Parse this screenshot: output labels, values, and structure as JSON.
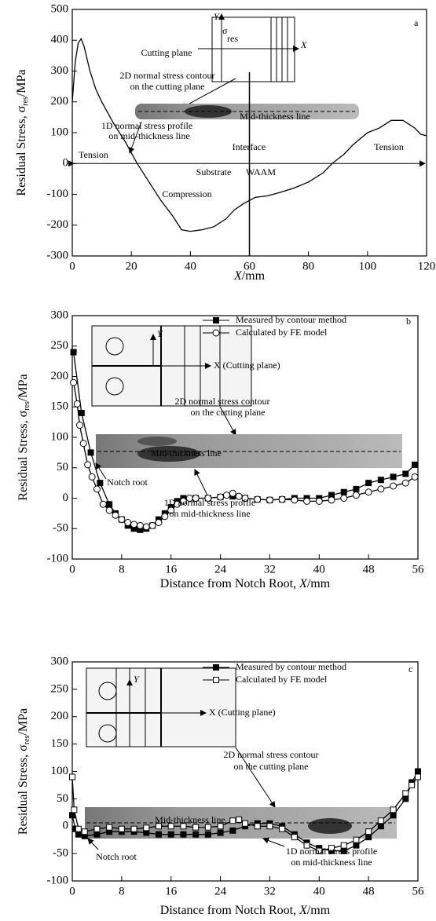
{
  "chart_data": [
    {
      "type": "line",
      "y_label": "Residual Stress, σ",
      "y_label_sub": "res",
      "y_label_unit": "/MPa",
      "x_label_var": "X",
      "x_label_unit": "/mm",
      "xlim": [
        0,
        120
      ],
      "xticks": [
        0,
        20,
        40,
        60,
        80,
        100,
        120
      ],
      "ylim": [
        -300,
        500
      ],
      "yticks": [
        -300,
        -200,
        -100,
        0,
        100,
        200,
        300,
        400,
        500
      ],
      "series": [
        {
          "color": "#000000",
          "marker": "none",
          "x": [
            0,
            1,
            2,
            3,
            4,
            6,
            8,
            10,
            14,
            18,
            22,
            26,
            30,
            34,
            37,
            40,
            44,
            48,
            52,
            55,
            58,
            60,
            62,
            66,
            70,
            75,
            80,
            85,
            88,
            92,
            95,
            100,
            104,
            108,
            112,
            116,
            118,
            120
          ],
          "values": [
            200,
            330,
            390,
            405,
            380,
            300,
            240,
            200,
            130,
            70,
            0,
            -60,
            -120,
            -170,
            -215,
            -220,
            -215,
            -205,
            -180,
            -150,
            -130,
            -120,
            -110,
            -105,
            -95,
            -80,
            -60,
            -30,
            0,
            30,
            60,
            100,
            115,
            140,
            140,
            115,
            95,
            90
          ]
        }
      ],
      "annotations": [
        {
          "text": "a"
        },
        {
          "text": "Y"
        },
        {
          "text": "X"
        },
        {
          "text": "σ"
        },
        {
          "text": "res"
        },
        {
          "text": "Cutting plane"
        },
        {
          "text": "2D normal stress contour"
        },
        {
          "text": "on the cutting plane"
        },
        {
          "text": "Mid-thickness line"
        },
        {
          "text": "1D normal stress profile"
        },
        {
          "text": "on mid-thickness line"
        },
        {
          "text": "Tension"
        },
        {
          "text": "Tension"
        },
        {
          "text": "Interface"
        },
        {
          "text": "Substrate"
        },
        {
          "text": "WAAM"
        },
        {
          "text": "Compression"
        }
      ]
    },
    {
      "type": "line",
      "y_label": "Residual Stress, σ",
      "y_label_sub": "res",
      "y_label_unit": "/MPa",
      "x_label_pre": "Distance from Notch Root, ",
      "x_label_var": "X",
      "x_label_unit": "/mm",
      "xlim": [
        0,
        56
      ],
      "xticks": [
        0,
        8,
        16,
        24,
        32,
        40,
        48,
        56
      ],
      "ylim": [
        -100,
        300
      ],
      "yticks": [
        -100,
        -50,
        0,
        50,
        100,
        150,
        200,
        250,
        300
      ],
      "series": [
        {
          "name": "Measured by contour method",
          "color": "#000000",
          "marker": "filled-square",
          "x": [
            0.2,
            1.5,
            3,
            4.5,
            6,
            7,
            8,
            9,
            10,
            11,
            12,
            13,
            14,
            15,
            16,
            17,
            18,
            20,
            22,
            24,
            26,
            28,
            30,
            32,
            34,
            36,
            38,
            40,
            42,
            44,
            46,
            48,
            50,
            52,
            54,
            55.5
          ],
          "values": [
            240,
            140,
            75,
            25,
            -10,
            -25,
            -35,
            -45,
            -50,
            -52,
            -50,
            -45,
            -35,
            -25,
            -15,
            -5,
            0,
            0,
            0,
            2,
            3,
            0,
            -2,
            -3,
            -2,
            0,
            0,
            0,
            5,
            10,
            15,
            25,
            30,
            35,
            40,
            55
          ]
        },
        {
          "name": "Calculated by FE model",
          "color": "#000000",
          "marker": "open-circle",
          "x": [
            0.2,
            0.8,
            1.2,
            1.8,
            2.5,
            3.2,
            4,
            5,
            6,
            7,
            8,
            9,
            10,
            11,
            12,
            13,
            14,
            15,
            16,
            17,
            18,
            19,
            20,
            22,
            24,
            25,
            26,
            27,
            28,
            30,
            32,
            34,
            36,
            38,
            40,
            42,
            44,
            46,
            48,
            50,
            52,
            54,
            55.5
          ],
          "values": [
            190,
            155,
            120,
            90,
            55,
            35,
            15,
            -10,
            -20,
            -28,
            -35,
            -40,
            -43,
            -45,
            -47,
            -45,
            -40,
            -30,
            -20,
            -10,
            -5,
            0,
            0,
            0,
            2,
            5,
            8,
            3,
            0,
            -2,
            -3,
            -2,
            -3,
            -5,
            -5,
            -3,
            0,
            5,
            10,
            15,
            20,
            25,
            35
          ]
        }
      ],
      "annotations": [
        {
          "text": "b"
        },
        {
          "text": "Y"
        },
        {
          "text": "X (Cutting plane)"
        },
        {
          "text": "2D normal stress contour"
        },
        {
          "text": "on the cutting plane"
        },
        {
          "text": "Mid-thickness line"
        },
        {
          "text": "Notch root"
        },
        {
          "text": "1D normal stress profile"
        },
        {
          "text": "on mid-thickness line"
        }
      ]
    },
    {
      "type": "line",
      "y_label": "Residual Stress, σ",
      "y_label_sub": "res",
      "y_label_unit": "/MPa",
      "x_label_pre": "Distance from Notch Root, ",
      "x_label_var": "X",
      "x_label_unit": "/mm",
      "xlim": [
        0,
        56
      ],
      "xticks": [
        0,
        8,
        16,
        24,
        32,
        40,
        48,
        56
      ],
      "ylim": [
        -100,
        300
      ],
      "yticks": [
        -100,
        -50,
        0,
        50,
        100,
        150,
        200,
        250,
        300
      ],
      "series": [
        {
          "name": "Measured by contour method",
          "color": "#000000",
          "marker": "filled-square",
          "x": [
            0,
            0.5,
            1,
            2,
            4,
            6,
            8,
            10,
            12,
            14,
            16,
            18,
            20,
            22,
            24,
            26,
            28,
            30,
            32,
            34,
            36,
            38,
            40,
            42,
            44,
            46,
            48,
            50,
            52,
            54,
            55,
            56
          ],
          "values": [
            20,
            -5,
            -15,
            -18,
            -15,
            -10,
            -10,
            -10,
            -12,
            -15,
            -15,
            -15,
            -15,
            -15,
            -12,
            -8,
            0,
            5,
            5,
            0,
            -15,
            -30,
            -40,
            -45,
            -45,
            -35,
            -20,
            0,
            20,
            50,
            80,
            100
          ]
        },
        {
          "name": "Calculated by FE model",
          "color": "#000000",
          "marker": "open-square",
          "x": [
            0,
            0.3,
            1,
            2,
            4,
            6,
            8,
            10,
            12,
            14,
            16,
            18,
            20,
            22,
            24,
            26,
            27,
            28,
            30,
            32,
            34,
            36,
            38,
            40,
            42,
            44,
            46,
            48,
            50,
            52,
            54,
            55,
            56
          ],
          "values": [
            90,
            30,
            -5,
            -10,
            -5,
            -2,
            -5,
            -5,
            -3,
            0,
            0,
            0,
            -2,
            -2,
            0,
            10,
            12,
            5,
            0,
            0,
            -5,
            -20,
            -35,
            -45,
            -40,
            -35,
            -25,
            -10,
            10,
            30,
            60,
            75,
            90
          ]
        }
      ],
      "annotations": [
        {
          "text": "c"
        },
        {
          "text": "Y"
        },
        {
          "text": "X (Cutting plane)"
        },
        {
          "text": "2D normal stress contour"
        },
        {
          "text": "on the cutting plane"
        },
        {
          "text": "Mid-thickness line"
        },
        {
          "text": "Notch root"
        },
        {
          "text": "1D normal stress profile"
        },
        {
          "text": "on mid-thickness line"
        }
      ]
    }
  ]
}
